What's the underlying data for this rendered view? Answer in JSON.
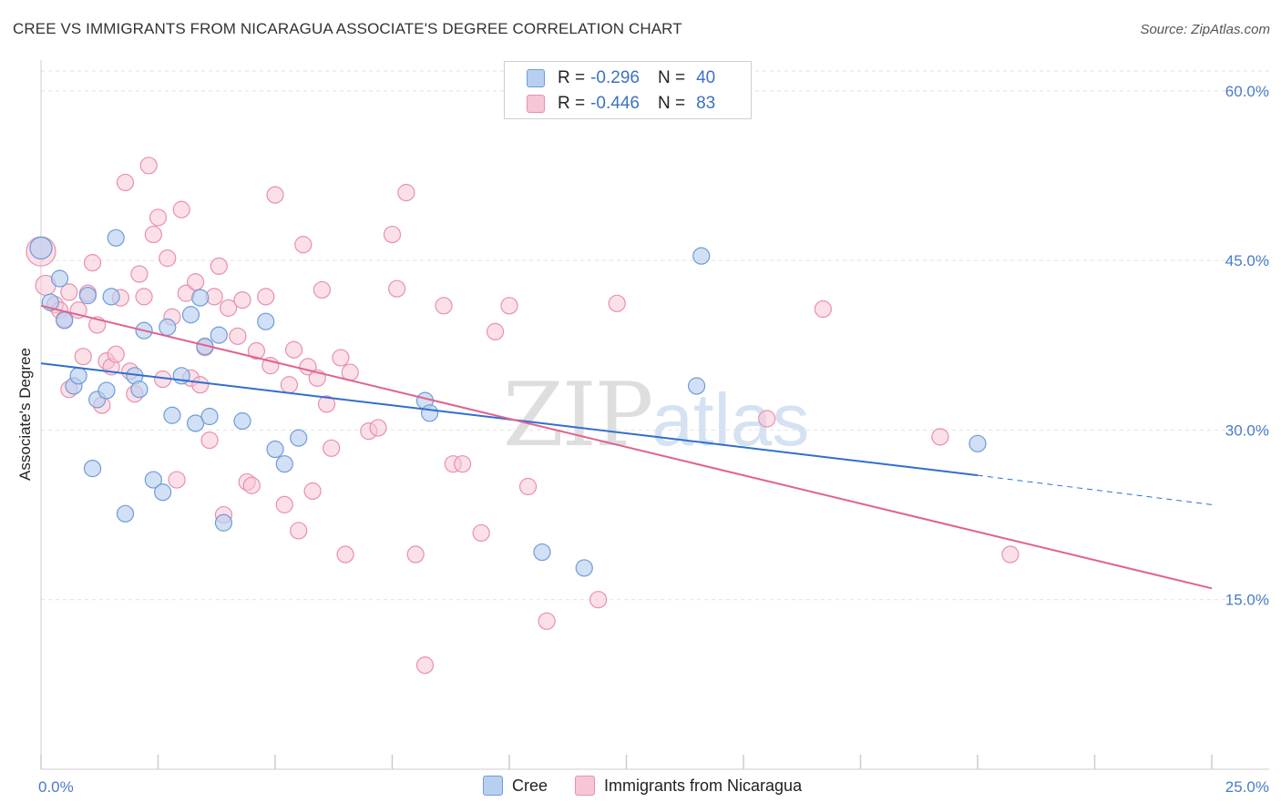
{
  "header": {
    "title": "CREE VS IMMIGRANTS FROM NICARAGUA ASSOCIATE'S DEGREE CORRELATION CHART",
    "source": "Source: ZipAtlas.com"
  },
  "watermark": {
    "zip": "ZIP",
    "atlas": "atlas"
  },
  "legend": {
    "r_label": "R =",
    "n_label": "N =",
    "rows": [
      {
        "r": "-0.296",
        "n": "40"
      },
      {
        "r": "-0.446",
        "n": "83"
      }
    ]
  },
  "bottom_legend": {
    "cree": "Cree",
    "nicaragua": "Immigrants from Nicaragua"
  },
  "colors": {
    "cree_fill": "#b8d0f0",
    "cree_stroke": "#6f9bd8",
    "cree_line": "#2f6fd0",
    "nic_fill": "#f7c6d6",
    "nic_stroke": "#e890ae",
    "nic_line": "#e0628e",
    "tick_text": "#4a7cc8"
  },
  "chart_data": {
    "type": "scatter",
    "title": "CREE VS IMMIGRANTS FROM NICARAGUA ASSOCIATE'S DEGREE CORRELATION CHART",
    "xlabel": "",
    "ylabel": "Associate's Degree",
    "xlim": [
      0,
      25
    ],
    "ylim": [
      0,
      62
    ],
    "x_ticks": [
      {
        "value": 0,
        "label": "0.0%"
      },
      {
        "value": 25,
        "label": "25.0%"
      }
    ],
    "y_ticks": [
      {
        "value": 15,
        "label": "15.0%"
      },
      {
        "value": 30,
        "label": "30.0%"
      },
      {
        "value": 45,
        "label": "45.0%"
      },
      {
        "value": 60,
        "label": "60.0%"
      }
    ],
    "grid": true,
    "legend_position": "top-center",
    "series": [
      {
        "name": "Cree",
        "points": [
          [
            0.0,
            46.1
          ],
          [
            0.2,
            41.3
          ],
          [
            0.4,
            43.4
          ],
          [
            0.5,
            39.7
          ],
          [
            0.7,
            33.9
          ],
          [
            0.8,
            34.8
          ],
          [
            1.0,
            41.9
          ],
          [
            1.1,
            26.6
          ],
          [
            1.2,
            32.7
          ],
          [
            1.4,
            33.5
          ],
          [
            1.5,
            41.8
          ],
          [
            1.6,
            47.0
          ],
          [
            1.8,
            22.6
          ],
          [
            2.0,
            34.8
          ],
          [
            2.1,
            33.6
          ],
          [
            2.2,
            38.8
          ],
          [
            2.4,
            25.6
          ],
          [
            2.6,
            24.5
          ],
          [
            2.7,
            39.1
          ],
          [
            2.8,
            31.3
          ],
          [
            3.0,
            34.8
          ],
          [
            3.2,
            40.2
          ],
          [
            3.3,
            30.6
          ],
          [
            3.4,
            41.7
          ],
          [
            3.5,
            37.4
          ],
          [
            3.6,
            31.2
          ],
          [
            3.8,
            38.4
          ],
          [
            3.9,
            21.8
          ],
          [
            4.3,
            30.8
          ],
          [
            4.8,
            39.6
          ],
          [
            5.0,
            28.3
          ],
          [
            5.2,
            27.0
          ],
          [
            5.5,
            29.3
          ],
          [
            8.2,
            32.6
          ],
          [
            8.3,
            31.5
          ],
          [
            10.7,
            19.2
          ],
          [
            11.6,
            17.8
          ],
          [
            14.0,
            33.9
          ],
          [
            14.1,
            45.4
          ],
          [
            20.0,
            28.8
          ]
        ]
      },
      {
        "name": "Immigrants from Nicaragua",
        "points": [
          [
            0.0,
            45.8
          ],
          [
            0.1,
            42.8
          ],
          [
            0.3,
            41.1
          ],
          [
            0.4,
            40.6
          ],
          [
            0.5,
            39.8
          ],
          [
            0.6,
            42.2
          ],
          [
            0.6,
            33.6
          ],
          [
            0.8,
            40.6
          ],
          [
            0.9,
            36.5
          ],
          [
            1.0,
            42.1
          ],
          [
            1.1,
            44.8
          ],
          [
            1.2,
            39.3
          ],
          [
            1.3,
            32.2
          ],
          [
            1.4,
            36.1
          ],
          [
            1.5,
            35.6
          ],
          [
            1.6,
            36.7
          ],
          [
            1.7,
            41.7
          ],
          [
            1.8,
            51.9
          ],
          [
            1.9,
            35.2
          ],
          [
            2.0,
            33.2
          ],
          [
            2.1,
            43.8
          ],
          [
            2.2,
            41.8
          ],
          [
            2.3,
            53.4
          ],
          [
            2.4,
            47.3
          ],
          [
            2.5,
            48.8
          ],
          [
            2.6,
            34.5
          ],
          [
            2.7,
            45.2
          ],
          [
            2.8,
            40.0
          ],
          [
            2.9,
            25.6
          ],
          [
            3.0,
            49.5
          ],
          [
            3.1,
            42.1
          ],
          [
            3.2,
            34.6
          ],
          [
            3.3,
            43.1
          ],
          [
            3.4,
            34.0
          ],
          [
            3.5,
            37.3
          ],
          [
            3.6,
            29.1
          ],
          [
            3.7,
            41.8
          ],
          [
            3.8,
            44.5
          ],
          [
            3.9,
            22.5
          ],
          [
            4.0,
            40.8
          ],
          [
            4.2,
            38.3
          ],
          [
            4.3,
            41.5
          ],
          [
            4.4,
            25.4
          ],
          [
            4.5,
            25.1
          ],
          [
            4.6,
            37.0
          ],
          [
            4.8,
            41.8
          ],
          [
            4.9,
            35.7
          ],
          [
            5.0,
            50.8
          ],
          [
            5.2,
            23.4
          ],
          [
            5.3,
            34.0
          ],
          [
            5.4,
            37.1
          ],
          [
            5.5,
            21.1
          ],
          [
            5.6,
            46.4
          ],
          [
            5.7,
            35.6
          ],
          [
            5.8,
            24.6
          ],
          [
            5.9,
            34.6
          ],
          [
            6.0,
            42.4
          ],
          [
            6.1,
            32.3
          ],
          [
            6.2,
            28.4
          ],
          [
            6.4,
            36.4
          ],
          [
            6.5,
            19.0
          ],
          [
            6.6,
            35.1
          ],
          [
            7.0,
            29.9
          ],
          [
            7.2,
            30.2
          ],
          [
            7.5,
            47.3
          ],
          [
            7.6,
            42.5
          ],
          [
            7.8,
            51.0
          ],
          [
            8.0,
            19.0
          ],
          [
            8.2,
            9.2
          ],
          [
            8.6,
            41.0
          ],
          [
            8.8,
            27.0
          ],
          [
            9.0,
            27.0
          ],
          [
            9.4,
            20.9
          ],
          [
            9.7,
            38.7
          ],
          [
            10.0,
            41.0
          ],
          [
            10.4,
            25.0
          ],
          [
            10.8,
            13.1
          ],
          [
            11.9,
            15.0
          ],
          [
            12.3,
            41.2
          ],
          [
            15.5,
            31.0
          ],
          [
            16.7,
            40.7
          ],
          [
            19.2,
            29.4
          ],
          [
            20.7,
            19.0
          ]
        ]
      }
    ],
    "trendlines": [
      {
        "series": "Cree",
        "x": [
          0,
          20
        ],
        "y": [
          35.9,
          26.0
        ],
        "dashed_extension": [
          20,
          25
        ],
        "dashed_y": [
          26.0,
          23.4
        ]
      },
      {
        "series": "Immigrants from Nicaragua",
        "x": [
          0,
          25
        ],
        "y": [
          41.0,
          16.0
        ]
      }
    ]
  }
}
